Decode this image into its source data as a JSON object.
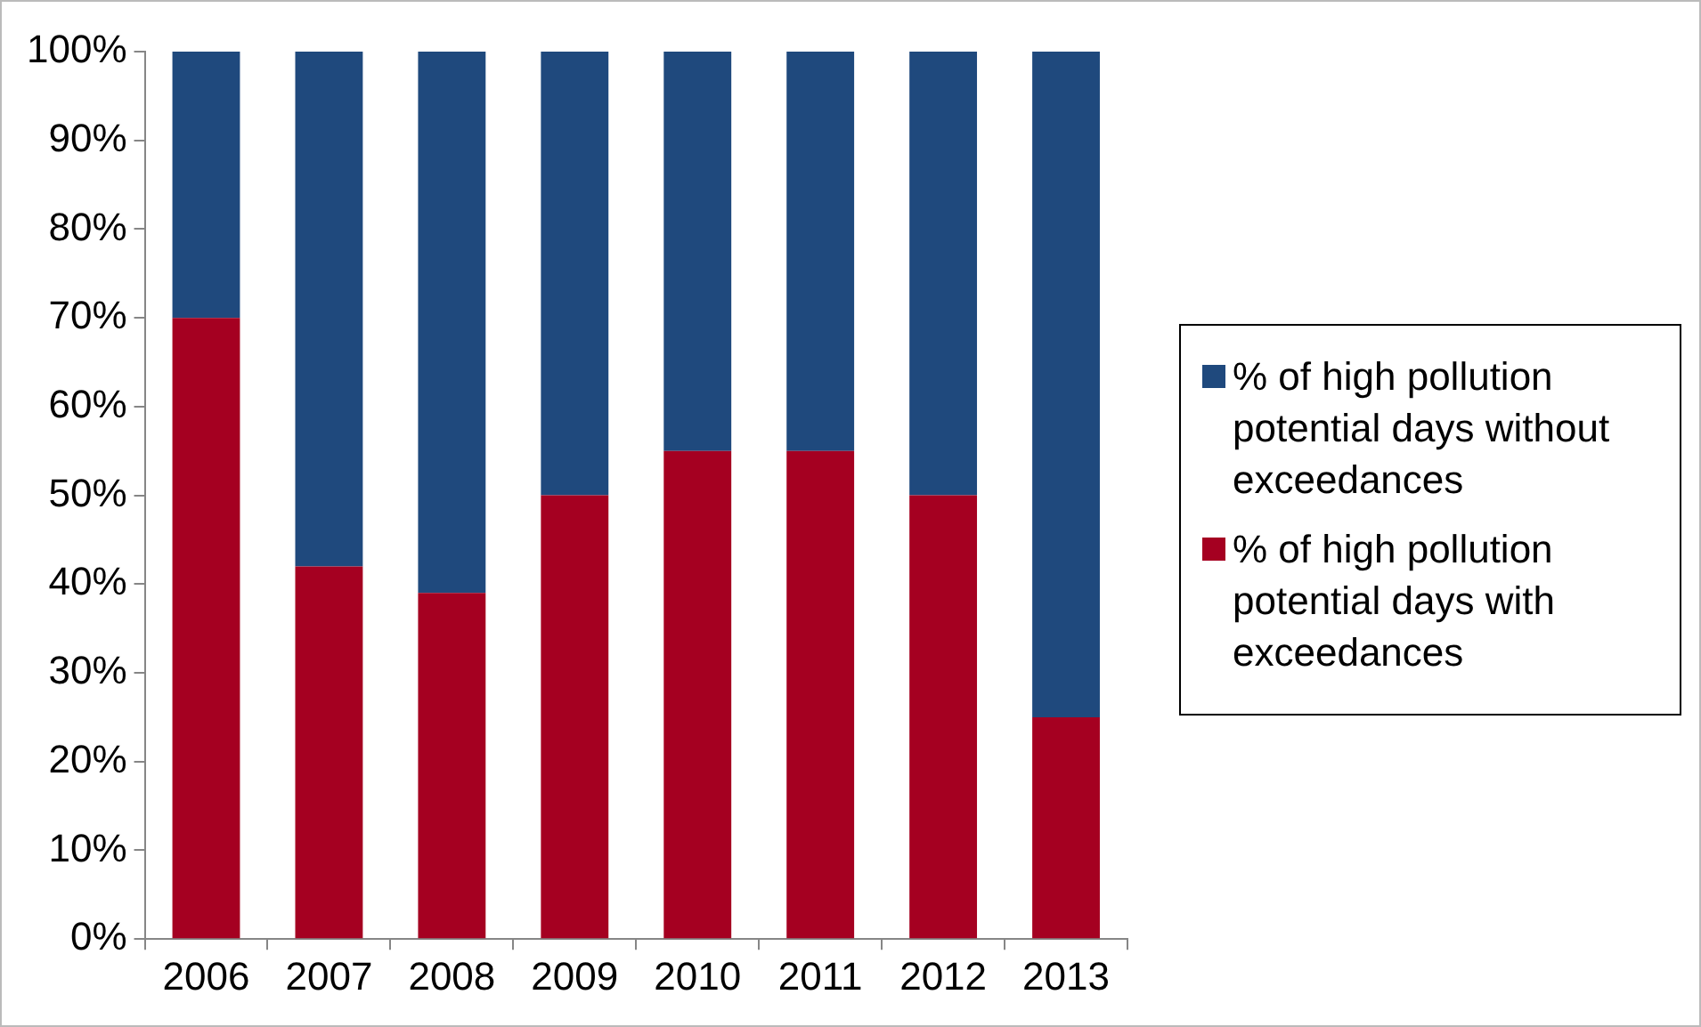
{
  "chart_data": {
    "type": "bar",
    "stacked": true,
    "categories": [
      "2006",
      "2007",
      "2008",
      "2009",
      "2010",
      "2011",
      "2012",
      "2013"
    ],
    "series": [
      {
        "name": "% of high pollution potential days with exceedances",
        "color": "#a50021",
        "values": [
          70,
          42,
          39,
          50,
          55,
          55,
          50,
          25
        ]
      },
      {
        "name": "% of high pollution potential days without exceedances",
        "color": "#1f497d",
        "values": [
          30,
          58,
          61,
          50,
          45,
          45,
          50,
          75
        ]
      }
    ],
    "ylim": [
      0,
      100
    ],
    "yticks": [
      {
        "value": 0,
        "label": "0%"
      },
      {
        "value": 10,
        "label": "10%"
      },
      {
        "value": 20,
        "label": "20%"
      },
      {
        "value": 30,
        "label": "30%"
      },
      {
        "value": 40,
        "label": "40%"
      },
      {
        "value": 50,
        "label": "50%"
      },
      {
        "value": 60,
        "label": "60%"
      },
      {
        "value": 70,
        "label": "70%"
      },
      {
        "value": 80,
        "label": "80%"
      },
      {
        "value": 90,
        "label": "90%"
      },
      {
        "value": 100,
        "label": "100%"
      }
    ],
    "grid": false,
    "legend": "right"
  }
}
